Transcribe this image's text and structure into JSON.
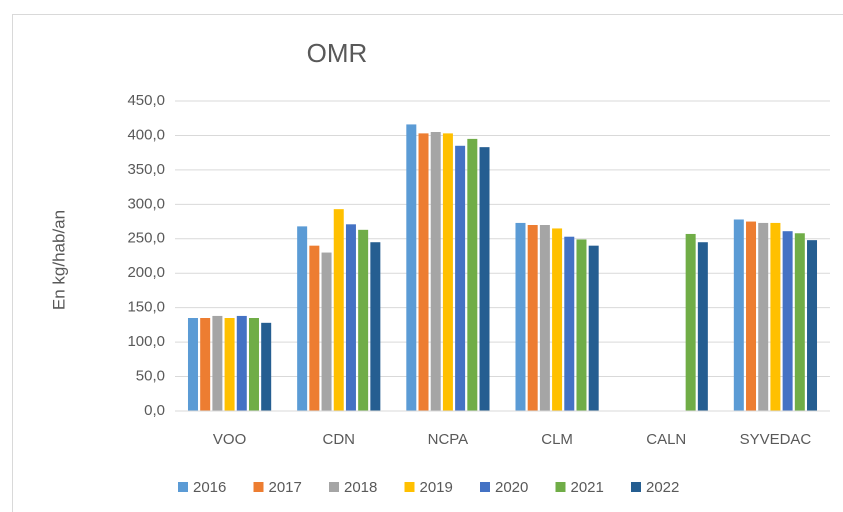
{
  "chart_data": {
    "type": "bar",
    "title": "OMR",
    "y_label": "En kg/hab/an",
    "categories": [
      "VOO",
      "CDN",
      "NCPA",
      "CLM",
      "CALN",
      "SYVEDAC"
    ],
    "series": [
      {
        "name": "2016",
        "color": "#5b9bd5",
        "values": [
          135,
          268,
          416,
          273,
          null,
          278
        ]
      },
      {
        "name": "2017",
        "color": "#ed7d31",
        "values": [
          135,
          240,
          403,
          270,
          null,
          275
        ]
      },
      {
        "name": "2018",
        "color": "#a5a5a5",
        "values": [
          138,
          230,
          405,
          270,
          null,
          273
        ]
      },
      {
        "name": "2019",
        "color": "#ffc000",
        "values": [
          135,
          293,
          403,
          265,
          null,
          273
        ]
      },
      {
        "name": "2020",
        "color": "#4472c4",
        "values": [
          138,
          271,
          385,
          253,
          null,
          261
        ]
      },
      {
        "name": "2021",
        "color": "#70ad47",
        "values": [
          135,
          263,
          395,
          249,
          257,
          258
        ]
      },
      {
        "name": "2022",
        "color": "#255e91",
        "values": [
          128,
          245,
          383,
          240,
          245,
          248
        ]
      }
    ],
    "ylim": [
      0,
      450
    ],
    "yticks": [
      {
        "value": 0,
        "label": "0,0"
      },
      {
        "value": 50,
        "label": "50,0"
      },
      {
        "value": 100,
        "label": "100,0"
      },
      {
        "value": 150,
        "label": "150,0"
      },
      {
        "value": 200,
        "label": "200,0"
      },
      {
        "value": 250,
        "label": "250,0"
      },
      {
        "value": 300,
        "label": "300,0"
      },
      {
        "value": 350,
        "label": "350,0"
      },
      {
        "value": 400,
        "label": "400,0"
      },
      {
        "value": 450,
        "label": "450,0"
      }
    ],
    "grid": true,
    "legend": "bottom"
  }
}
